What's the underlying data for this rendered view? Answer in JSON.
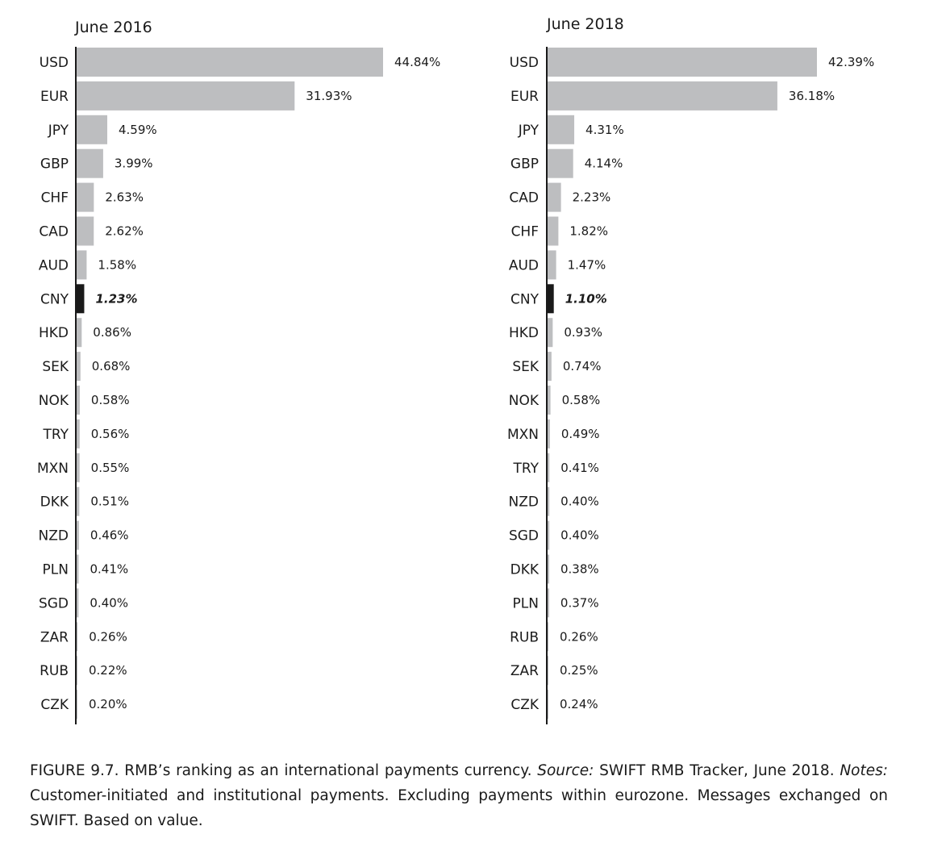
{
  "chart_data": [
    {
      "type": "bar",
      "orientation": "horizontal",
      "title": "June 2016",
      "categories": [
        "USD",
        "EUR",
        "JPY",
        "GBP",
        "CHF",
        "CAD",
        "AUD",
        "CNY",
        "HKD",
        "SEK",
        "NOK",
        "TRY",
        "MXN",
        "DKK",
        "NZD",
        "PLN",
        "SGD",
        "ZAR",
        "RUB",
        "CZK"
      ],
      "values": [
        44.84,
        31.93,
        4.59,
        3.99,
        2.63,
        2.62,
        1.58,
        1.23,
        0.86,
        0.68,
        0.58,
        0.56,
        0.55,
        0.51,
        0.46,
        0.41,
        0.4,
        0.26,
        0.22,
        0.2
      ],
      "value_labels": [
        "44.84%",
        "31.93%",
        "4.59%",
        "3.99%",
        "2.63%",
        "2.62%",
        "1.58%",
        "1.23%",
        "0.86%",
        "0.68%",
        "0.58%",
        "0.56%",
        "0.55%",
        "0.51%",
        "0.46%",
        "0.41%",
        "0.40%",
        "0.26%",
        "0.22%",
        "0.20%"
      ],
      "highlight": "CNY",
      "xlim": [
        0,
        45
      ],
      "grid": false
    },
    {
      "type": "bar",
      "orientation": "horizontal",
      "title": "June 2018",
      "categories": [
        "USD",
        "EUR",
        "JPY",
        "GBP",
        "CAD",
        "CHF",
        "AUD",
        "CNY",
        "HKD",
        "SEK",
        "NOK",
        "MXN",
        "TRY",
        "NZD",
        "SGD",
        "DKK",
        "PLN",
        "RUB",
        "ZAR",
        "CZK"
      ],
      "values": [
        42.39,
        36.18,
        4.31,
        4.14,
        2.23,
        1.82,
        1.47,
        1.1,
        0.93,
        0.74,
        0.58,
        0.49,
        0.41,
        0.4,
        0.4,
        0.38,
        0.37,
        0.26,
        0.25,
        0.24
      ],
      "value_labels": [
        "42.39%",
        "36.18%",
        "4.31%",
        "4.14%",
        "2.23%",
        "1.82%",
        "1.47%",
        "1.10%",
        "0.93%",
        "0.74%",
        "0.58%",
        "0.49%",
        "0.41%",
        "0.40%",
        "0.40%",
        "0.38%",
        "0.37%",
        "0.26%",
        "0.25%",
        "0.24%"
      ],
      "highlight": "CNY",
      "xlim": [
        0,
        45
      ],
      "grid": false
    }
  ],
  "colors": {
    "bar": "#bdbec0",
    "highlight_bar": "#1a1a1a",
    "axis": "#1a1a1a",
    "text": "#1a1a1a"
  },
  "caption": {
    "figure_label": "FIGURE 9.7. RMB’s ranking as an international payments currency. ",
    "source_label": "Source:",
    "source_text": " SWIFT RMB Tracker, June 2018. ",
    "notes_label": "Notes:",
    "notes_text": " Customer-initiated and institutional payments. Excluding payments within eurozone. Messages exchanged on SWIFT. Based on value."
  }
}
